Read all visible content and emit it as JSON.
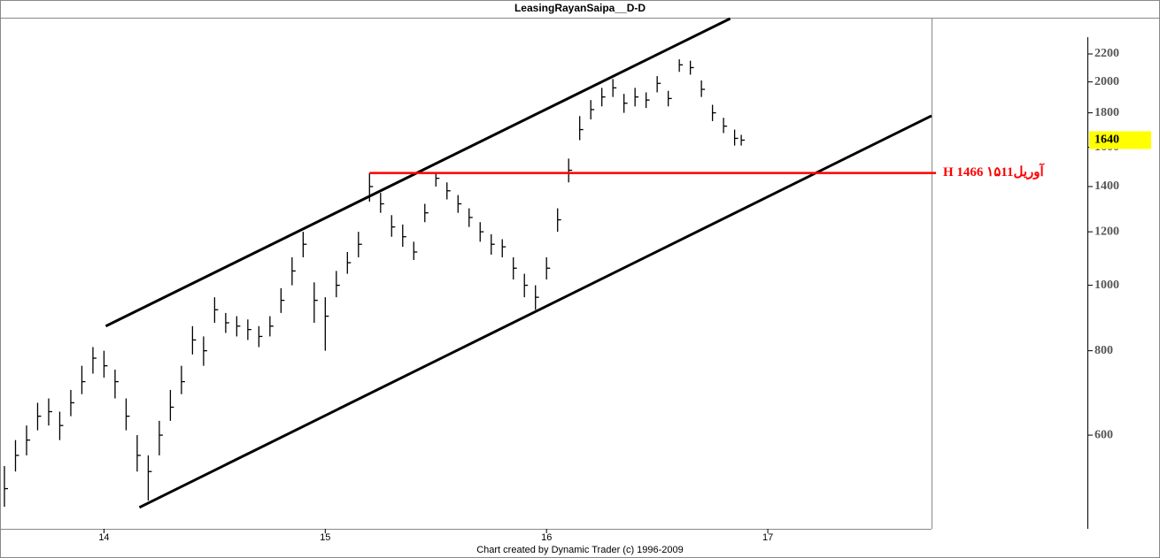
{
  "chart_data": {
    "type": "hlc",
    "title": "LeasingRayanSaipa__D-D",
    "footer": "Chart created by Dynamic Trader  (c) 1996-2009",
    "log_y": true,
    "color": "#000000",
    "xlim": [
      13.53,
      17.74
    ],
    "ylim": [
      436,
      2482
    ],
    "xticks": [
      14,
      15,
      16,
      17
    ],
    "yticks": [
      600,
      800,
      1000,
      1200,
      1400,
      1600,
      1800,
      2000,
      2200
    ],
    "x": [
      13.55,
      13.6,
      13.65,
      13.7,
      13.75,
      13.8,
      13.85,
      13.9,
      13.95,
      14.0,
      14.05,
      14.1,
      14.15,
      14.2,
      14.25,
      14.3,
      14.35,
      14.4,
      14.45,
      14.5,
      14.55,
      14.6,
      14.65,
      14.7,
      14.75,
      14.8,
      14.85,
      14.9,
      14.95,
      15.0,
      15.05,
      15.1,
      15.15,
      15.2,
      15.25,
      15.3,
      15.35,
      15.4,
      15.45,
      15.5,
      15.55,
      15.6,
      15.65,
      15.7,
      15.75,
      15.8,
      15.85,
      15.9,
      15.95,
      16.0,
      16.05,
      16.1,
      16.15,
      16.2,
      16.25,
      16.3,
      16.35,
      16.4,
      16.45,
      16.5,
      16.55,
      16.6,
      16.65,
      16.7,
      16.75,
      16.8,
      16.85,
      16.88
    ],
    "close": [
      500,
      560,
      590,
      640,
      650,
      620,
      670,
      720,
      780,
      760,
      720,
      640,
      560,
      530,
      600,
      660,
      720,
      830,
      800,
      920,
      880,
      870,
      860,
      840,
      870,
      950,
      1050,
      1150,
      950,
      900,
      1000,
      1080,
      1150,
      1400,
      1320,
      1220,
      1180,
      1120,
      1280,
      1440,
      1380,
      1320,
      1260,
      1200,
      1150,
      1140,
      1060,
      1000,
      960,
      1060,
      1250,
      1480,
      1700,
      1820,
      1900,
      1960,
      1860,
      1900,
      1880,
      1990,
      1890,
      2120,
      2100,
      1950,
      1800,
      1720,
      1650,
      1640
    ],
    "high": [
      540,
      590,
      620,
      670,
      680,
      650,
      700,
      760,
      810,
      800,
      750,
      680,
      600,
      560,
      630,
      700,
      760,
      870,
      840,
      960,
      910,
      900,
      890,
      870,
      900,
      990,
      1100,
      1200,
      1010,
      960,
      1050,
      1120,
      1200,
      1466,
      1370,
      1270,
      1230,
      1160,
      1320,
      1470,
      1420,
      1360,
      1300,
      1240,
      1190,
      1170,
      1100,
      1040,
      1000,
      1100,
      1300,
      1540,
      1780,
      1880,
      1960,
      2020,
      1920,
      1960,
      1930,
      2040,
      1940,
      2160,
      2150,
      2010,
      1850,
      1770,
      1700,
      1670
    ],
    "low": [
      470,
      530,
      560,
      610,
      620,
      590,
      640,
      690,
      740,
      730,
      680,
      610,
      530,
      480,
      560,
      630,
      690,
      790,
      760,
      880,
      850,
      840,
      830,
      810,
      840,
      910,
      1000,
      1100,
      880,
      800,
      960,
      1040,
      1100,
      1330,
      1280,
      1180,
      1140,
      1090,
      1240,
      1400,
      1340,
      1280,
      1220,
      1160,
      1110,
      1100,
      1020,
      960,
      920,
      1020,
      1200,
      1420,
      1640,
      1760,
      1840,
      1900,
      1800,
      1840,
      1830,
      1930,
      1840,
      2070,
      2050,
      1900,
      1750,
      1680,
      1610,
      1610
    ],
    "trendlines": [
      {
        "x": [
          14.008,
          16.83
        ],
        "y": [
          870,
          2482
        ]
      },
      {
        "x": [
          14.16,
          17.74
        ],
        "y": [
          469,
          1782
        ]
      }
    ],
    "level": {
      "value": 1466,
      "label": "H 1466 ۱۵آوریل11",
      "x": [
        15.2,
        17.76
      ],
      "color": "#ff0000"
    },
    "last_price": {
      "value": 1640,
      "label": "1640",
      "color": "#ffff00"
    }
  }
}
